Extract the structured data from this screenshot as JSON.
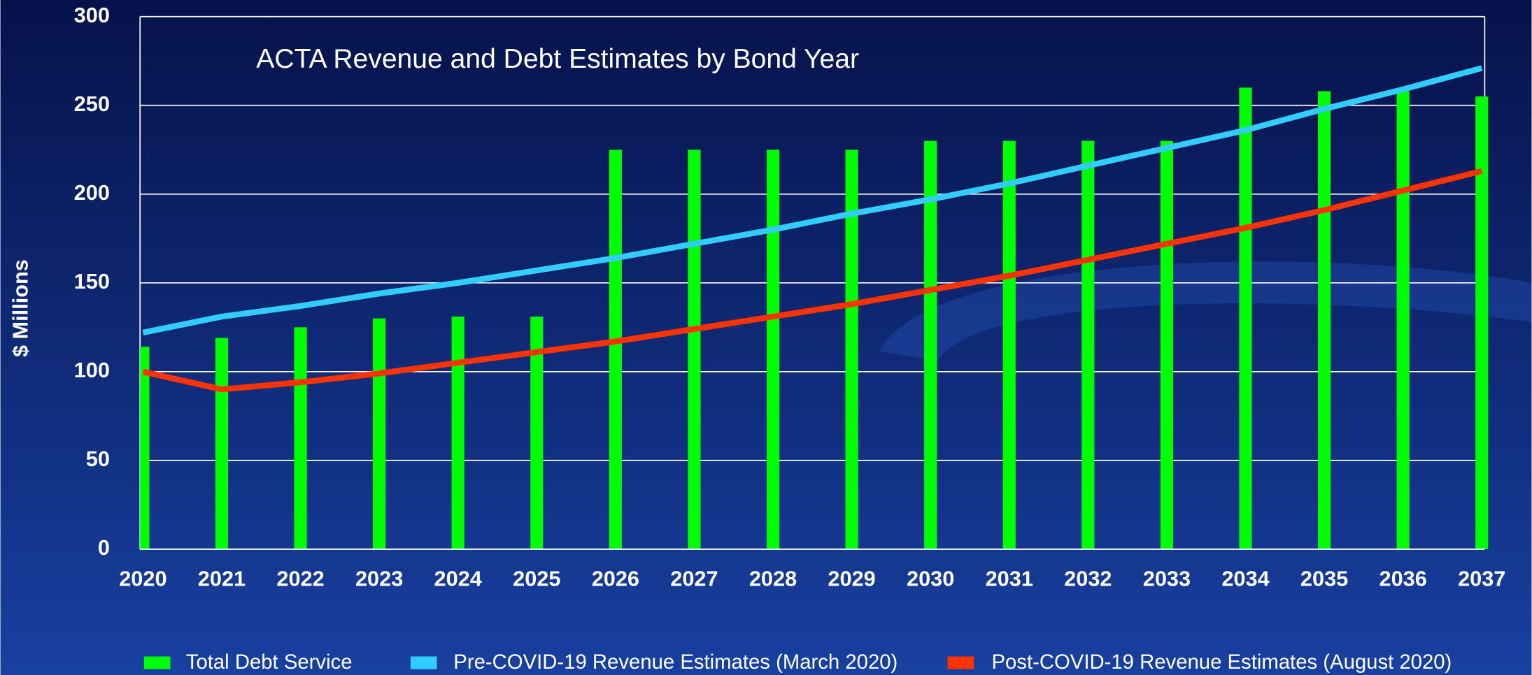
{
  "chart_data": {
    "type": "bar_line",
    "title": "ACTA Revenue and Debt Estimates by Bond Year",
    "y_label": "$ Millions",
    "categories": [
      "2020",
      "2021",
      "2022",
      "2023",
      "2024",
      "2025",
      "2026",
      "2027",
      "2028",
      "2029",
      "2030",
      "2031",
      "2032",
      "2033",
      "2034",
      "2035",
      "2036",
      "2037"
    ],
    "series": [
      {
        "name": "Total Debt Service",
        "type": "bar",
        "color": "#00ff00",
        "values": [
          114,
          119,
          125,
          130,
          131,
          131,
          225,
          225,
          225,
          225,
          230,
          230,
          230,
          230,
          260,
          258,
          258,
          255
        ]
      },
      {
        "name": "Pre-COVID-19 Revenue Estimates (March 2020)",
        "type": "line",
        "color": "#33ccff",
        "values": [
          122,
          131,
          137,
          144,
          150,
          157,
          164,
          172,
          180,
          189,
          197,
          206,
          216,
          226,
          236,
          248,
          259,
          271
        ]
      },
      {
        "name": "Post-COVID-19 Revenue Estimates (August 2020)",
        "type": "line",
        "color": "#ff3300",
        "values": [
          100,
          90,
          94,
          99,
          105,
          111,
          117,
          124,
          131,
          138,
          146,
          154,
          163,
          172,
          181,
          191,
          202,
          213
        ]
      }
    ],
    "ylim": [
      0,
      300
    ],
    "yticks": [
      0,
      50,
      100,
      150,
      200,
      250,
      300
    ],
    "grid": true
  }
}
